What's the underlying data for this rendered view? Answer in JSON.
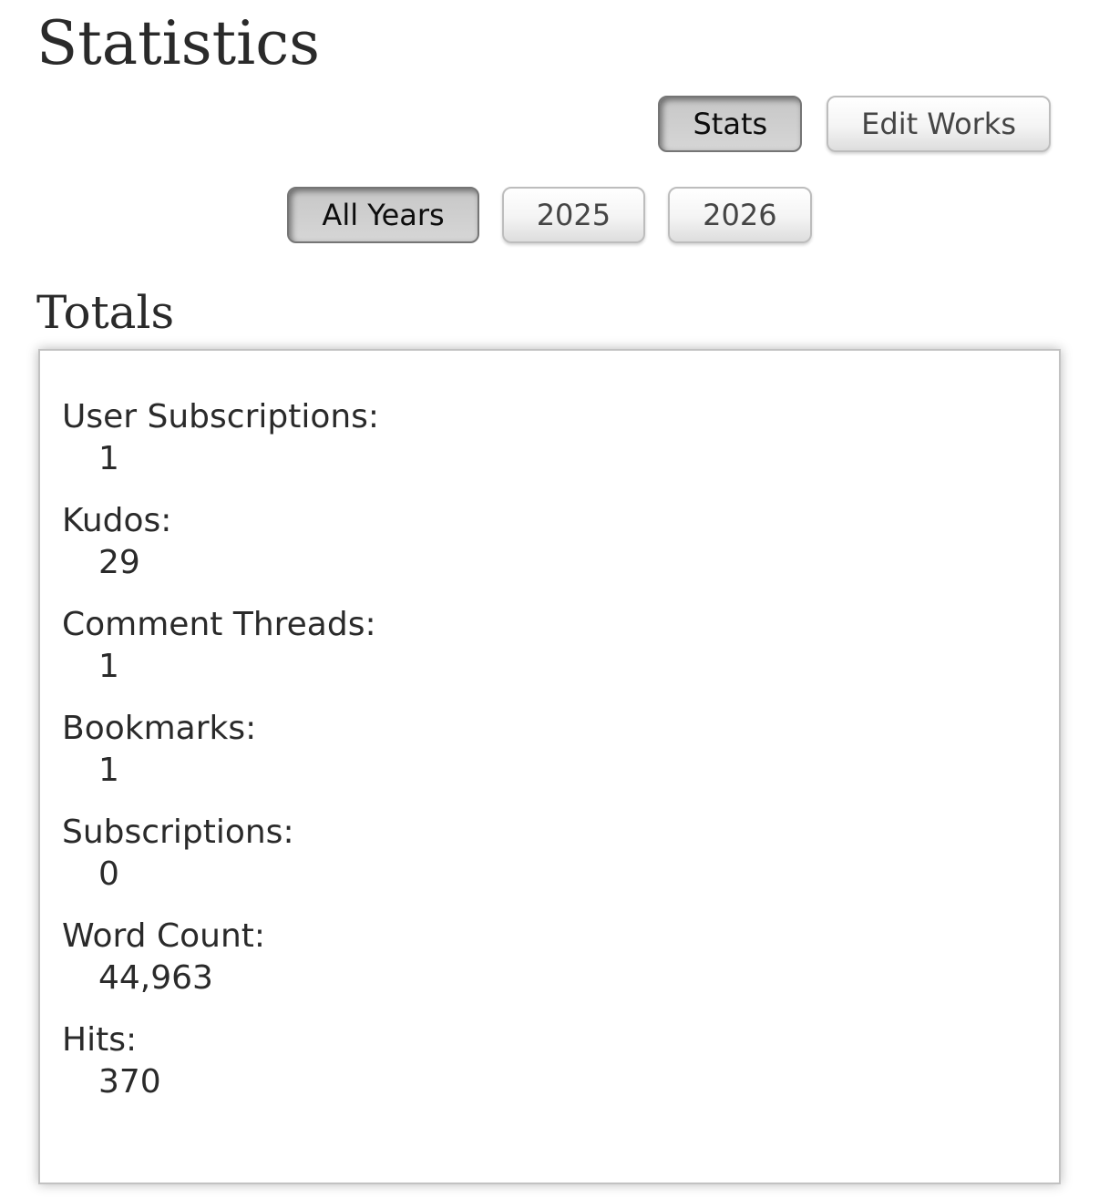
{
  "page": {
    "title": "Statistics",
    "section_heading": "Totals"
  },
  "nav": {
    "view_tabs": [
      {
        "label": "Stats",
        "current": true
      },
      {
        "label": "Edit Works",
        "current": false
      }
    ],
    "year_tabs": [
      {
        "label": "All Years",
        "current": true
      },
      {
        "label": "2025",
        "current": false
      },
      {
        "label": "2026",
        "current": false
      }
    ]
  },
  "totals": {
    "items": [
      {
        "label": "User Subscriptions:",
        "value": "1"
      },
      {
        "label": "Kudos:",
        "value": "29"
      },
      {
        "label": "Comment Threads:",
        "value": "1"
      },
      {
        "label": "Bookmarks:",
        "value": "1"
      },
      {
        "label": "Subscriptions:",
        "value": "0"
      },
      {
        "label": "Word Count:",
        "value": "44,963"
      },
      {
        "label": "Hits:",
        "value": "370"
      }
    ]
  },
  "colors": {
    "text": "#2a2a2a",
    "button_border": "#bdbdbd",
    "current_button_bg": "#cccccc",
    "box_border": "#c2c2c2",
    "background": "#ffffff"
  }
}
